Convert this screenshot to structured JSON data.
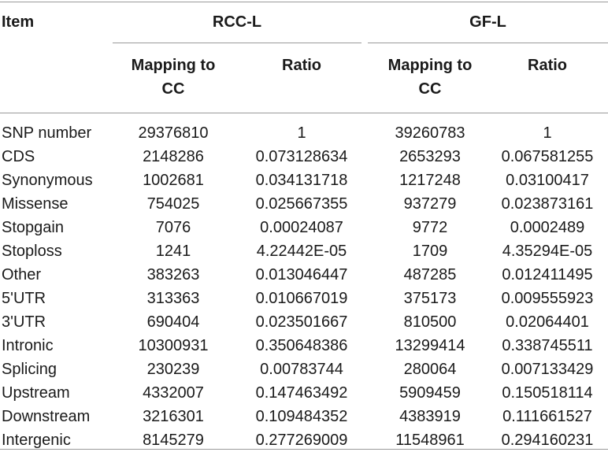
{
  "table": {
    "item_header": "Item",
    "groups": [
      {
        "label": "RCC-L",
        "sub": [
          "Mapping to\nCC",
          "Ratio"
        ]
      },
      {
        "label": "GF-L",
        "sub": [
          "Mapping to\nCC",
          "Ratio"
        ]
      }
    ],
    "rows": [
      [
        "SNP number",
        "29376810",
        "1",
        "39260783",
        "1"
      ],
      [
        "CDS",
        "2148286",
        "0.073128634",
        "2653293",
        "0.067581255"
      ],
      [
        "Synonymous",
        "1002681",
        "0.034131718",
        "1217248",
        "0.03100417"
      ],
      [
        "Missense",
        "754025",
        "0.025667355",
        "937279",
        "0.023873161"
      ],
      [
        "Stopgain",
        "7076",
        "0.00024087",
        "9772",
        "0.0002489"
      ],
      [
        "Stoploss",
        "1241",
        "4.22442E-05",
        "1709",
        "4.35294E-05"
      ],
      [
        "Other",
        "383263",
        "0.013046447",
        "487285",
        "0.012411495"
      ],
      [
        "5'UTR",
        "313363",
        "0.010667019",
        "375173",
        "0.009555923"
      ],
      [
        "3'UTR",
        "690404",
        "0.023501667",
        "810500",
        "0.02064401"
      ],
      [
        "Intronic",
        "10300931",
        "0.350648386",
        "13299414",
        "0.338745511"
      ],
      [
        "Splicing",
        "230239",
        "0.00783744",
        "280064",
        "0.007133429"
      ],
      [
        "Upstream",
        "4332007",
        "0.147463492",
        "5909459",
        "0.150518114"
      ],
      [
        "Downstream",
        "3216301",
        "0.109484352",
        "4383919",
        "0.111661527"
      ],
      [
        "Intergenic",
        "8145279",
        "0.277269009",
        "11548961",
        "0.294160231"
      ]
    ]
  }
}
